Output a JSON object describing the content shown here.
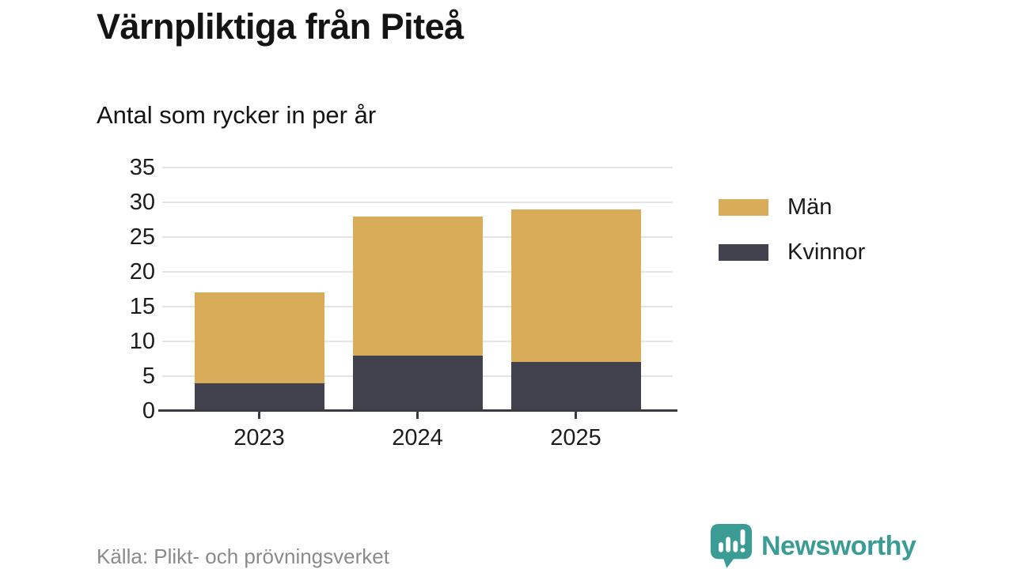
{
  "title": "Värnpliktiga från Piteå",
  "subtitle": "Antal som rycker in per år",
  "source": "Källa: Plikt- och prövningsverket",
  "brand": {
    "name": "Newsworthy",
    "color": "#3b9c95",
    "icon": "newsworthy-speech-bubble-bar-chart-icon"
  },
  "colors": {
    "men": "#d9ac5a",
    "women": "#42424e",
    "axis": "#3a3a44",
    "grid": "#e4e4e4",
    "text": "#151515",
    "muted": "#8a8a8a"
  },
  "legend": {
    "items": [
      {
        "label": "Män",
        "color": "#d9ac5a"
      },
      {
        "label": "Kvinnor",
        "color": "#42424e"
      }
    ]
  },
  "chart_data": {
    "type": "bar",
    "stacked": true,
    "title": "Värnpliktiga från Piteå",
    "subtitle": "Antal som rycker in per år",
    "categories": [
      "2023",
      "2024",
      "2025"
    ],
    "series": [
      {
        "name": "Män",
        "color": "#d9ac5a",
        "values": [
          13,
          20,
          22
        ]
      },
      {
        "name": "Kvinnor",
        "color": "#42424e",
        "values": [
          4,
          8,
          7
        ]
      }
    ],
    "stack_order_bottom_to_top": [
      "Kvinnor",
      "Män"
    ],
    "totals": [
      17,
      28,
      29
    ],
    "ylim": [
      0,
      35
    ],
    "yticks": [
      0,
      5,
      10,
      15,
      20,
      25,
      30,
      35
    ],
    "grid": true,
    "legend_position": "right",
    "xlabel": "",
    "ylabel": ""
  }
}
